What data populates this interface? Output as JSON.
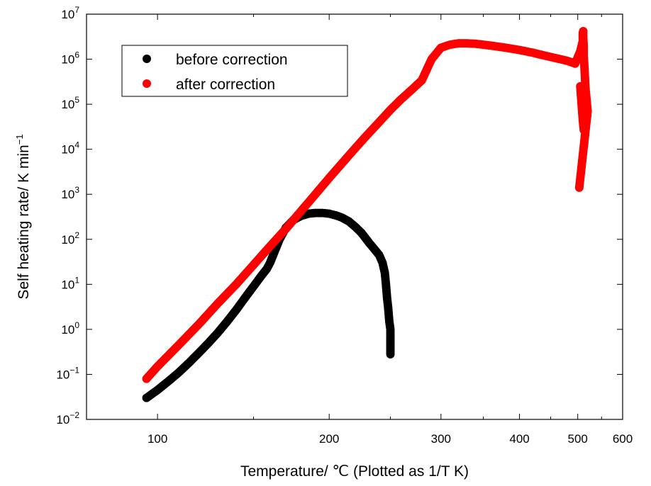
{
  "chart_data": {
    "type": "scatter",
    "title": "",
    "xlabel": "Temperature/ ℃ (Plotted as 1/T K)",
    "ylabel": "Self heating rate/ K min",
    "ylabel_superscript": "−1",
    "x_scale": "reciprocal-absolute-temperature",
    "xlim": [
      70,
      600
    ],
    "x_ticks": [
      100,
      200,
      300,
      400,
      500,
      600
    ],
    "y_scale": "log",
    "ylim": [
      0.01,
      10000000
    ],
    "y_tick_base": "10",
    "y_tick_exponents": [
      "−2",
      "−1",
      "0",
      "1",
      "2",
      "3",
      "4",
      "5",
      "6",
      "7"
    ],
    "grid": false,
    "legend_position": "top-left",
    "series": [
      {
        "name": "before correction",
        "color": "#000000",
        "x": [
          95,
          100,
          105,
          110,
          115,
          120,
          125,
          130,
          135,
          140,
          145,
          150,
          155,
          158,
          160,
          163,
          166,
          170,
          175,
          180,
          185,
          190,
          195,
          200,
          205,
          210,
          215,
          220,
          225,
          228,
          232,
          236,
          240,
          243,
          245,
          246,
          247,
          248,
          249,
          250,
          250,
          250,
          250
        ],
        "y": [
          0.03,
          0.045,
          0.07,
          0.11,
          0.18,
          0.3,
          0.5,
          0.85,
          1.5,
          2.7,
          5,
          9,
          16,
          22,
          30,
          55,
          100,
          180,
          270,
          330,
          370,
          385,
          385,
          370,
          340,
          300,
          250,
          190,
          140,
          110,
          80,
          60,
          45,
          30,
          18,
          10,
          5,
          3,
          1.5,
          1.0,
          0.65,
          0.45,
          0.28
        ]
      },
      {
        "name": "after correction",
        "color": "#ff0000",
        "x": [
          95,
          100,
          110,
          120,
          130,
          140,
          150,
          160,
          170,
          180,
          190,
          200,
          210,
          220,
          230,
          240,
          250,
          260,
          270,
          280,
          290,
          300,
          310,
          320,
          330,
          340,
          350,
          360,
          380,
          400,
          420,
          440,
          460,
          480,
          495,
          505,
          510,
          510,
          511,
          511,
          512,
          512,
          513,
          514,
          515,
          516,
          518,
          520,
          503,
          505,
          510,
          512
        ],
        "y": [
          0.08,
          0.15,
          0.45,
          1.3,
          3.8,
          10,
          27,
          70,
          170,
          420,
          1000,
          2300,
          5000,
          10500,
          21000,
          40000,
          75000,
          130000,
          210000,
          340000,
          1000000,
          1800000,
          2100000,
          2250000,
          2250000,
          2200000,
          2100000,
          2000000,
          1800000,
          1600000,
          1400000,
          1200000,
          1050000,
          920000,
          800000,
          1500000,
          2500000,
          3800000,
          4200000,
          3000000,
          2000000,
          1200000,
          800000,
          500000,
          300000,
          200000,
          120000,
          70000,
          1400,
          250000,
          45000,
          27000
        ]
      }
    ]
  }
}
